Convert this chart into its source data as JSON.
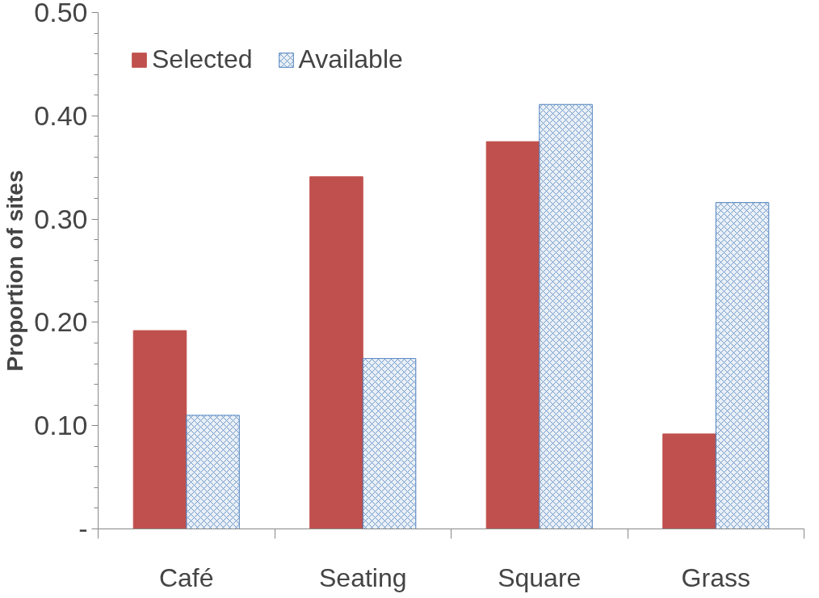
{
  "chart_data": {
    "type": "bar",
    "ylabel": "Proportion of sites",
    "categories": [
      "Café",
      "Seating",
      "Square",
      "Grass"
    ],
    "series": [
      {
        "name": "Selected",
        "color": "#c0504d",
        "values": [
          0.192,
          0.341,
          0.375,
          0.092
        ]
      },
      {
        "name": "Available",
        "color": "#4f81bd",
        "values": [
          0.11,
          0.165,
          0.411,
          0.316
        ]
      }
    ],
    "ylim": [
      0,
      0.5
    ],
    "yticks": [
      {
        "value": 0,
        "label": "-"
      },
      {
        "value": 0.1,
        "label": "0.10"
      },
      {
        "value": 0.2,
        "label": "0.20"
      },
      {
        "value": 0.3,
        "label": "0.30"
      },
      {
        "value": 0.4,
        "label": "0.40"
      },
      {
        "value": 0.5,
        "label": "0.50"
      }
    ],
    "grid": false,
    "legend": "top left"
  }
}
